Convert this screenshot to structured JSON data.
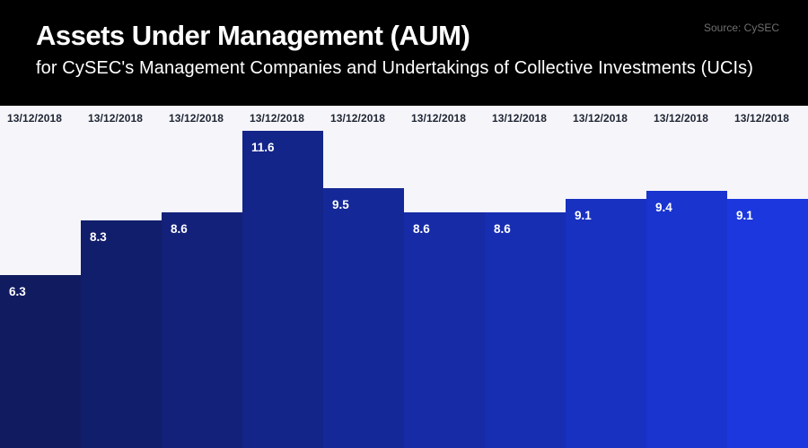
{
  "header": {
    "title": "Assets Under Management (AUM)",
    "subtitle": "for CySEC's Management Companies and Undertakings of Collective Investments (UCIs)",
    "source_label": "Source: CySEC"
  },
  "colors": {
    "header_bg": "#000000",
    "chart_bg": "#f5f5fa",
    "title_text": "#ffffff",
    "subtitle_text": "#ffffff",
    "source_text": "#6f6f6f",
    "date_label_text": "#1f2533",
    "value_label_text": "#ffffff"
  },
  "chart_data": {
    "type": "bar",
    "title": "Assets Under Management (AUM)",
    "subtitle": "for CySEC's Management Companies and Undertakings of Collective Investments (UCIs)",
    "source": "Source: CySEC",
    "categories": [
      "13/12/2018",
      "13/12/2018",
      "13/12/2018",
      "13/12/2018",
      "13/12/2018",
      "13/12/2018",
      "13/12/2018",
      "13/12/2018",
      "13/12/2018",
      "13/12/2018"
    ],
    "values": [
      6.3,
      8.3,
      8.6,
      11.6,
      9.5,
      8.6,
      8.6,
      9.1,
      9.4,
      9.1
    ],
    "bar_colors": [
      "#111b60",
      "#111e6b",
      "#13217a",
      "#132589",
      "#152897",
      "#162ba5",
      "#172eb3",
      "#1831c1",
      "#1934cf",
      "#1b37dd"
    ],
    "xlabel": "",
    "ylabel": "",
    "ylim": [
      0,
      12.5
    ],
    "grid": false,
    "legend": false,
    "value_labels_shown": true,
    "category_labels_position": "top",
    "bar_gap": 0
  }
}
